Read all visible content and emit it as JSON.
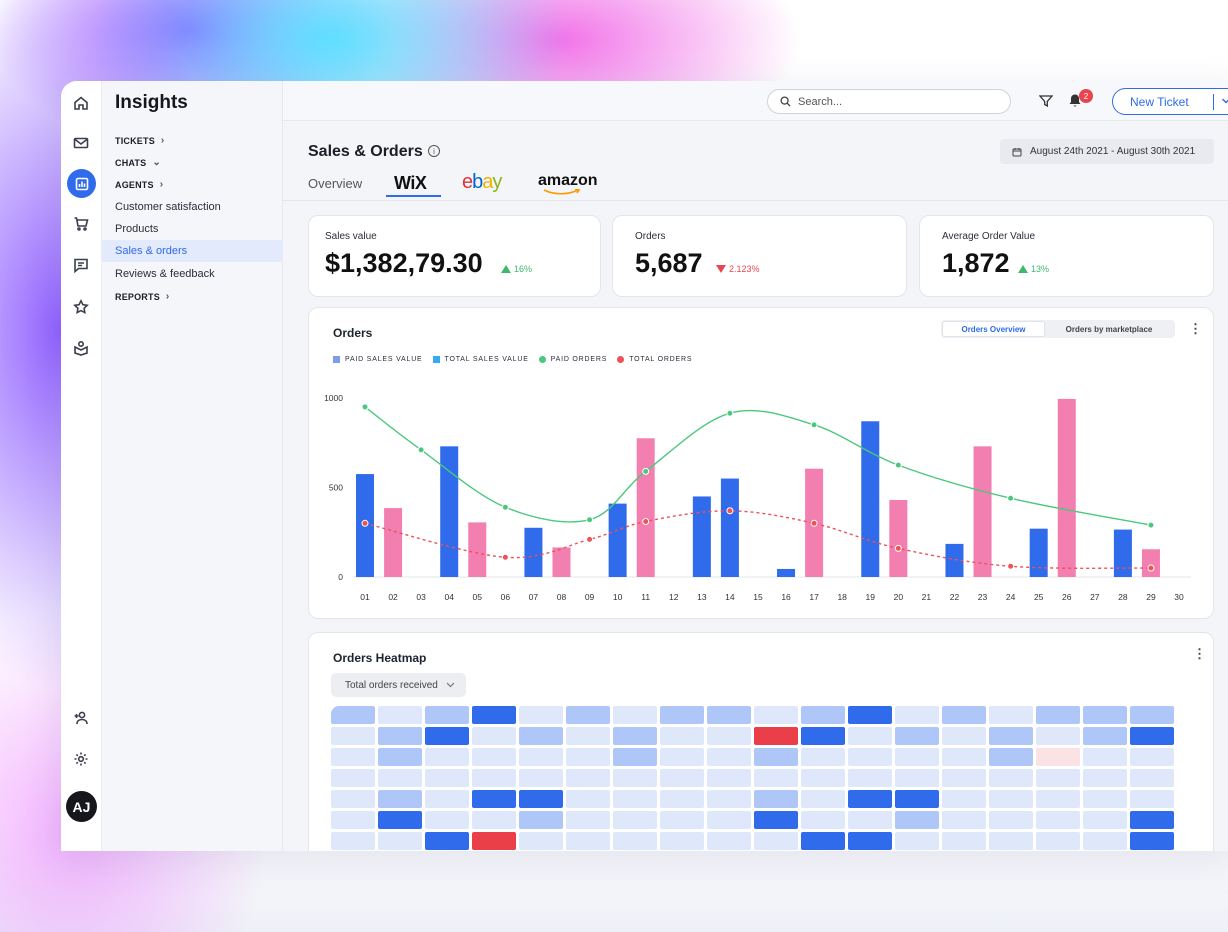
{
  "app": {
    "section_title": "Insights"
  },
  "rail": {
    "avatar_initials": "AJ"
  },
  "sidebar": {
    "sections": [
      {
        "label": "TICKETS",
        "chevron": "›"
      },
      {
        "label": "CHATS",
        "chevron": "⌄"
      },
      {
        "label": "AGENTS",
        "chevron": "›"
      },
      {
        "label": "REPORTS",
        "chevron": "›"
      }
    ],
    "items": [
      {
        "label": "Customer satisfaction"
      },
      {
        "label": "Products"
      },
      {
        "label": "Sales & orders"
      },
      {
        "label": "Reviews & feedback"
      }
    ]
  },
  "topbar": {
    "search_placeholder": "Search...",
    "notification_count": "2",
    "new_ticket_label": "New Ticket"
  },
  "page": {
    "title": "Sales & Orders",
    "info_glyph": "i",
    "date_range": "August 24th 2021 - August 30th 2021",
    "tabs": {
      "overview": "Overview",
      "wix": "WiX",
      "ebay_e": "e",
      "ebay_b": "b",
      "ebay_a": "a",
      "ebay_y": "y",
      "amazon": "amazon"
    }
  },
  "kpis": [
    {
      "label": "Sales value",
      "value": "$1,382,79.30",
      "delta": "16%",
      "direction": "up"
    },
    {
      "label": "Orders",
      "value": "5,687",
      "delta": "2.123%",
      "direction": "down"
    },
    {
      "label": "Average Order Value",
      "value": "1,872",
      "delta": "13%",
      "direction": "up"
    }
  ],
  "orders_chart": {
    "title": "Orders",
    "toggle": {
      "active": "Orders Overview",
      "inactive": "Orders by marketplace"
    },
    "legend": [
      "PAID SALES VALUE",
      "TOTAL SALES VALUE",
      "PAID ORDERS",
      "TOTAL ORDERS"
    ]
  },
  "chart_data": {
    "type": "bar",
    "title": "Orders",
    "categories": [
      "01",
      "02",
      "03",
      "04",
      "05",
      "06",
      "07",
      "08",
      "09",
      "10",
      "11",
      "12",
      "13",
      "14",
      "15",
      "16",
      "17",
      "18",
      "19",
      "20",
      "21",
      "22",
      "23",
      "24",
      "25",
      "26",
      "27",
      "28",
      "29",
      "30"
    ],
    "yticks": [
      0,
      500,
      1000
    ],
    "ylim": [
      0,
      1000
    ],
    "colors": {
      "blue": "#2f6bea",
      "pink": "#f27fb0",
      "green": "#4cc87e",
      "red": "#ee5157"
    },
    "series": [
      {
        "name": "PAID SALES VALUE",
        "kind": "bar",
        "values": [
          575,
          0,
          0,
          730,
          0,
          0,
          275,
          0,
          0,
          410,
          0,
          0,
          450,
          550,
          0,
          45,
          0,
          0,
          870,
          0,
          0,
          185,
          0,
          0,
          270,
          0,
          0,
          265,
          0,
          0
        ]
      },
      {
        "name": "TOTAL SALES VALUE",
        "kind": "bar",
        "values": [
          0,
          385,
          0,
          0,
          305,
          0,
          0,
          165,
          0,
          0,
          775,
          0,
          0,
          0,
          0,
          0,
          605,
          0,
          0,
          430,
          0,
          0,
          730,
          0,
          0,
          995,
          0,
          0,
          155,
          0
        ]
      },
      {
        "name": "PAID ORDERS",
        "kind": "line",
        "x": [
          "01",
          "03",
          "06",
          "09",
          "11",
          "14",
          "17",
          "20",
          "24",
          "29"
        ],
        "values": [
          950,
          710,
          390,
          320,
          590,
          915,
          850,
          625,
          440,
          290
        ]
      },
      {
        "name": "TOTAL ORDERS",
        "kind": "line",
        "x": [
          "01",
          "06",
          "09",
          "11",
          "14",
          "17",
          "20",
          "24",
          "29"
        ],
        "values": [
          300,
          110,
          210,
          310,
          370,
          300,
          160,
          60,
          50
        ]
      }
    ]
  },
  "heatmap": {
    "title": "Orders Heatmap",
    "select_label": "Total orders received",
    "rows": [
      [
        1,
        0,
        1,
        3,
        0,
        1,
        0,
        1,
        1,
        0,
        1,
        3,
        0,
        1,
        0,
        1,
        1,
        1
      ],
      [
        0,
        1,
        3,
        0,
        1,
        0,
        1,
        0,
        0,
        4,
        3,
        0,
        1,
        0,
        1,
        0,
        1,
        3
      ],
      [
        0,
        1,
        0,
        0,
        0,
        0,
        1,
        0,
        0,
        1,
        0,
        0,
        0,
        0,
        1,
        5,
        0,
        0
      ],
      [
        0,
        0,
        0,
        0,
        0,
        0,
        0,
        0,
        0,
        0,
        0,
        0,
        0,
        0,
        0,
        0,
        0,
        0
      ],
      [
        0,
        1,
        0,
        3,
        3,
        0,
        0,
        0,
        0,
        1,
        0,
        3,
        3,
        0,
        0,
        0,
        0,
        0
      ],
      [
        0,
        3,
        0,
        0,
        1,
        0,
        0,
        0,
        0,
        3,
        0,
        0,
        1,
        0,
        0,
        0,
        0,
        3
      ],
      [
        0,
        0,
        3,
        4,
        0,
        0,
        0,
        0,
        0,
        0,
        3,
        3,
        0,
        0,
        0,
        0,
        0,
        3
      ]
    ]
  }
}
